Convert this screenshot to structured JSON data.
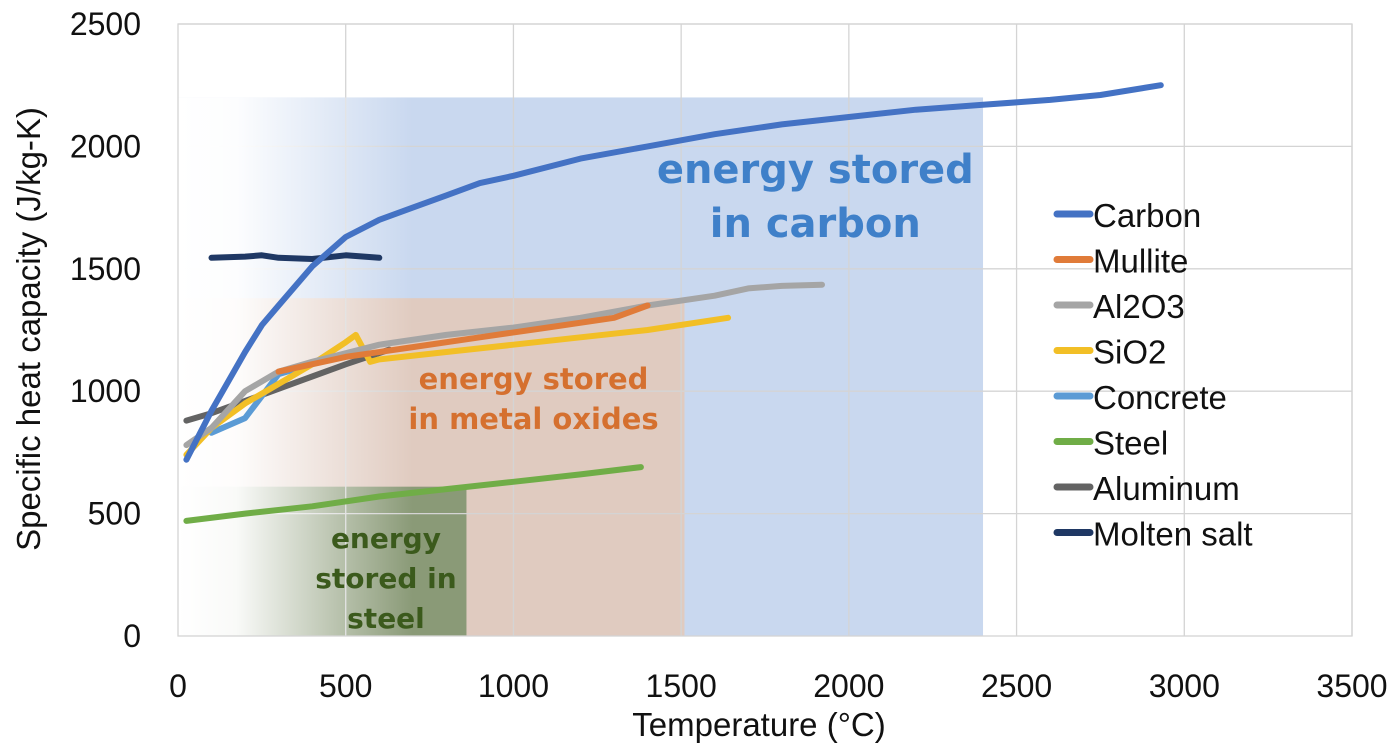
{
  "chart_data": {
    "type": "line",
    "title": "",
    "xlabel": "Temperature (°C)",
    "ylabel": "Specific heat capacity (J/kg-K)",
    "xlim": [
      0,
      3500
    ],
    "ylim": [
      0,
      2500
    ],
    "xticks": [
      0,
      500,
      1000,
      1500,
      2000,
      2500,
      3000,
      3500
    ],
    "yticks": [
      0,
      500,
      1000,
      1500,
      2000,
      2500
    ],
    "grid": true,
    "legend_position": "right",
    "regions": [
      {
        "label_lines": [
          "energy stored",
          "in carbon"
        ],
        "x_end": 2400,
        "color": "#c9d8ef",
        "text_color": "#3f80c9",
        "label_x": 1900,
        "label_y": 1850
      },
      {
        "label_lines": [
          "energy stored",
          "in metal oxides"
        ],
        "x_end": 1510,
        "color": "#e0cbc0",
        "text_color": "#d5702f",
        "label_x": 1060,
        "label_y": 1010
      },
      {
        "label_lines": [
          "energy",
          "stored in",
          "steel"
        ],
        "x_end": 860,
        "color": "#8a9a77",
        "text_color": "#3b5a1c",
        "label_x": 620,
        "label_y": 360
      }
    ],
    "series": [
      {
        "name": "Carbon",
        "color": "#4472c4",
        "x": [
          25,
          100,
          200,
          250,
          300,
          400,
          500,
          600,
          700,
          800,
          900,
          1000,
          1200,
          1400,
          1600,
          1800,
          2000,
          2200,
          2400,
          2600,
          2750,
          2930
        ],
        "y": [
          720,
          920,
          1160,
          1270,
          1350,
          1510,
          1630,
          1700,
          1750,
          1800,
          1850,
          1880,
          1950,
          2000,
          2050,
          2090,
          2120,
          2150,
          2170,
          2190,
          2210,
          2250
        ]
      },
      {
        "name": "Mullite",
        "color": "#e07b39",
        "x": [
          300,
          500,
          700,
          900,
          1100,
          1300,
          1400
        ],
        "y": [
          1080,
          1140,
          1180,
          1220,
          1260,
          1300,
          1350
        ]
      },
      {
        "name": "Al2O3",
        "color": "#a5a5a5",
        "x": [
          25,
          100,
          200,
          300,
          400,
          600,
          800,
          1000,
          1200,
          1400,
          1600,
          1700,
          1800,
          1920
        ],
        "y": [
          780,
          850,
          1000,
          1080,
          1120,
          1190,
          1230,
          1260,
          1300,
          1350,
          1390,
          1420,
          1430,
          1435
        ]
      },
      {
        "name": "SiO2",
        "color": "#f2bf26",
        "x": [
          25,
          100,
          200,
          300,
          400,
          500,
          530,
          573,
          600,
          800,
          1000,
          1200,
          1400,
          1640
        ],
        "y": [
          740,
          850,
          950,
          1030,
          1110,
          1200,
          1230,
          1120,
          1130,
          1160,
          1190,
          1220,
          1250,
          1300
        ]
      },
      {
        "name": "Concrete",
        "color": "#5b9bd5",
        "x": [
          100,
          200,
          300,
          400
        ],
        "y": [
          830,
          890,
          1070,
          1110
        ]
      },
      {
        "name": "Steel",
        "color": "#70ad47",
        "x": [
          25,
          200,
          400,
          600,
          800,
          1000,
          1200,
          1380
        ],
        "y": [
          470,
          500,
          530,
          570,
          600,
          630,
          660,
          690
        ]
      },
      {
        "name": "Aluminum",
        "color": "#636363",
        "x": [
          25,
          100,
          200,
          300,
          400,
          500,
          630
        ],
        "y": [
          880,
          910,
          960,
          1010,
          1060,
          1110,
          1170
        ]
      },
      {
        "name": "Molten salt",
        "color": "#1f3864",
        "x": [
          100,
          200,
          250,
          300,
          400,
          500,
          600
        ],
        "y": [
          1545,
          1550,
          1555,
          1545,
          1540,
          1555,
          1545
        ]
      }
    ]
  }
}
